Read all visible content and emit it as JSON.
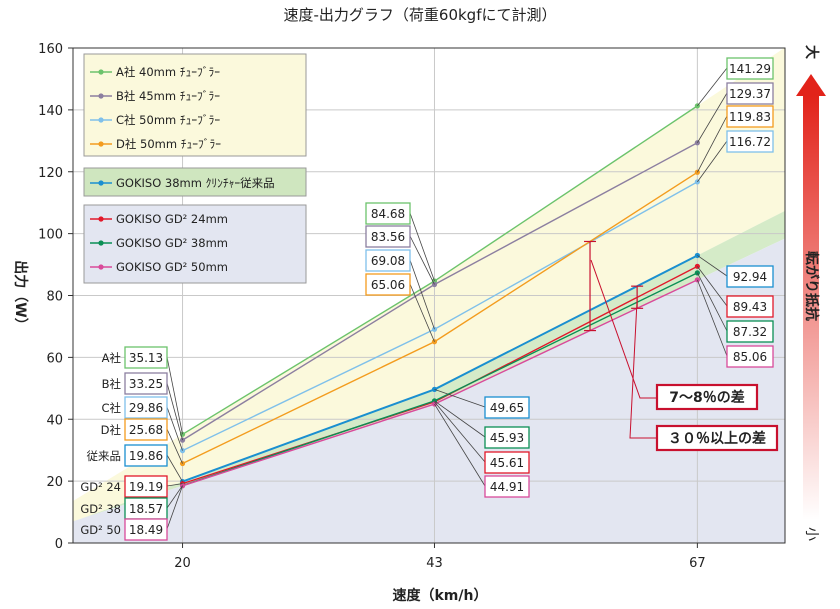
{
  "chart_data": {
    "type": "line",
    "title": "速度-出力グラフ（荷重60kgfにて計測）",
    "xlabel": "速度（km/h）",
    "ylabel": "出力（W）",
    "x": [
      20,
      43,
      67
    ],
    "ylim": [
      0,
      160
    ],
    "yticks": [
      0,
      20,
      40,
      60,
      80,
      100,
      120,
      140,
      160
    ],
    "grid": true,
    "legend_position": "top-left",
    "series": [
      {
        "name": "A社 40mm ﾁｭｰﾌﾞﾗｰ",
        "label": "A社",
        "values": [
          35.13,
          84.68,
          141.29
        ],
        "color": "#6cc36c"
      },
      {
        "name": "B社 45mm ﾁｭｰﾌﾞﾗｰ",
        "label": "B社",
        "values": [
          33.25,
          83.56,
          129.37
        ],
        "color": "#8c7fa0"
      },
      {
        "name": "C社 50mm ﾁｭｰﾌﾞﾗｰ",
        "label": "C社",
        "values": [
          29.86,
          69.08,
          116.72
        ],
        "color": "#7fc0ea"
      },
      {
        "name": "D社 50mm ﾁｭｰﾌﾞﾗｰ",
        "label": "D社",
        "values": [
          25.68,
          65.06,
          119.83
        ],
        "color": "#f39c1e"
      },
      {
        "name": "GOKISO 38mm ｸﾘﾝﾁｬｰ従来品",
        "label": "従来品",
        "values": [
          19.86,
          49.65,
          92.94
        ],
        "color": "#1a8fd0"
      },
      {
        "name": "GOKISO GD² 24mm",
        "label": "GD² 24",
        "values": [
          19.19,
          45.61,
          89.43
        ],
        "color": "#e2182a"
      },
      {
        "name": "GOKISO GD² 38mm",
        "label": "GD² 38",
        "values": [
          18.57,
          45.93,
          87.32
        ],
        "color": "#0a8f55"
      },
      {
        "name": "GOKISO GD² 50mm",
        "label": "GD² 50",
        "values": [
          18.49,
          44.91,
          85.06
        ],
        "color": "#d94a9a"
      }
    ],
    "annotations": [
      "7～8％の差",
      "３０％以上の差"
    ],
    "side_axis": {
      "title": "転がり抵抗",
      "top": "大",
      "bottom": "小"
    }
  }
}
